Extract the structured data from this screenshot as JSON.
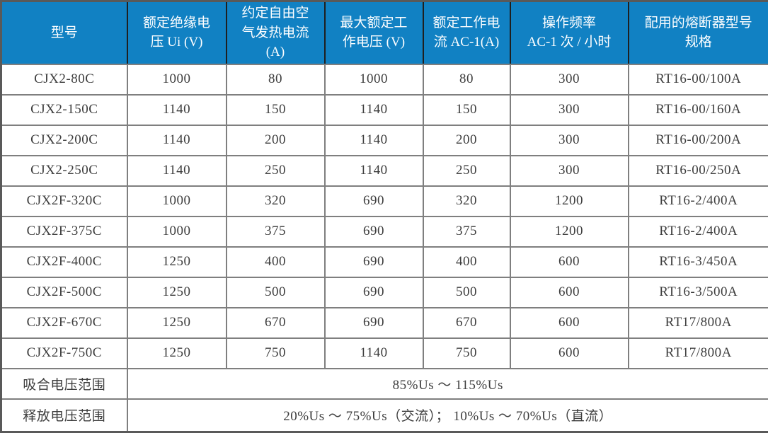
{
  "table": {
    "headers": [
      "型号",
      "额定绝缘电\n压 Ui (V)",
      "约定自由空\n气发热电流\n(A)",
      "最大额定工\n作电压 (V)",
      "额定工作电\n流 AC-1(A)",
      "操作频率\nAC-1 次 / 小时",
      "配用的熔断器型号\n规格"
    ],
    "rows": [
      [
        "CJX2-80C",
        "1000",
        "80",
        "1000",
        "80",
        "300",
        "RT16-00/100A"
      ],
      [
        "CJX2-150C",
        "1140",
        "150",
        "1140",
        "150",
        "300",
        "RT16-00/160A"
      ],
      [
        "CJX2-200C",
        "1140",
        "200",
        "1140",
        "200",
        "300",
        "RT16-00/200A"
      ],
      [
        "CJX2-250C",
        "1140",
        "250",
        "1140",
        "250",
        "300",
        "RT16-00/250A"
      ],
      [
        "CJX2F-320C",
        "1000",
        "320",
        "690",
        "320",
        "1200",
        "RT16-2/400A"
      ],
      [
        "CJX2F-375C",
        "1000",
        "375",
        "690",
        "375",
        "1200",
        "RT16-2/400A"
      ],
      [
        "CJX2F-400C",
        "1250",
        "400",
        "690",
        "400",
        "600",
        "RT16-3/450A"
      ],
      [
        "CJX2F-500C",
        "1250",
        "500",
        "690",
        "500",
        "600",
        "RT16-3/500A"
      ],
      [
        "CJX2F-670C",
        "1250",
        "670",
        "690",
        "670",
        "600",
        "RT17/800A"
      ],
      [
        "CJX2F-750C",
        "1250",
        "750",
        "1140",
        "750",
        "600",
        "RT17/800A"
      ]
    ],
    "footer_rows": [
      {
        "label": "吸合电压范围",
        "value": "85%Us ～ 115%Us"
      },
      {
        "label": "释放电压范围",
        "value": "20%Us ～ 75%Us（交流）； 10%Us ～ 70%Us（直流）"
      }
    ],
    "colors": {
      "header_bg": "#1181C3",
      "header_text": "#FDFEFF",
      "body_text": "#3D3D3D",
      "outer_border": "#595959",
      "inner_border": "#7F7F7F",
      "header_divider": "#1F1F1F"
    }
  }
}
